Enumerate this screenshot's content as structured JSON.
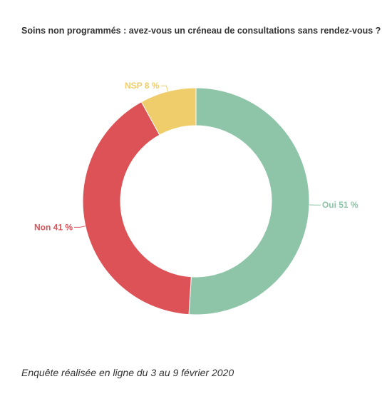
{
  "title": "Soins non programmés : avez-vous un créneau de consultations sans rendez-vous ?",
  "footer": "Enquête réalisée en ligne du 3 au 9 février 2020",
  "chart_data": {
    "type": "pie",
    "donut": true,
    "slices": [
      {
        "label": "Oui 51 %",
        "category": "Oui",
        "value": 51,
        "color": "#8ec5a8"
      },
      {
        "label": "Non 41 %",
        "category": "Non",
        "value": 41,
        "color": "#dc5257"
      },
      {
        "label": "NSP 8 %",
        "category": "NSP",
        "value": 8,
        "color": "#efcd6b"
      }
    ],
    "legend": "none"
  }
}
